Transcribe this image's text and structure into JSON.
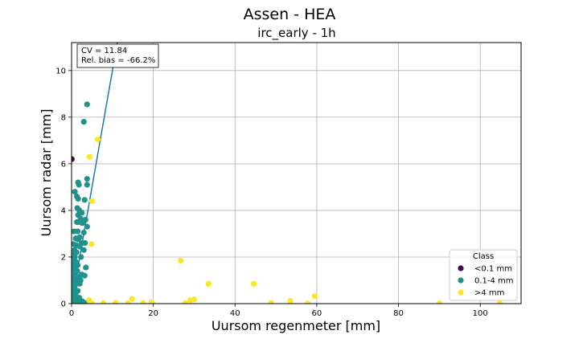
{
  "chart_data": {
    "type": "scatter",
    "suptitle": "Assen - HEA",
    "title": "irc_early - 1h",
    "xlabel": "Uursom regenmeter [mm]",
    "ylabel": "Uursom radar [mm]",
    "xlim": [
      0,
      110
    ],
    "ylim": [
      0,
      11.2
    ],
    "xticks": [
      0,
      20,
      40,
      60,
      80,
      100
    ],
    "yticks": [
      0,
      2,
      4,
      6,
      8,
      10
    ],
    "grid": true,
    "stats": {
      "cv": "CV = 11.84",
      "bias": "Rel. bias = -66.2%"
    },
    "fit_line": {
      "slope": 1.0,
      "intercept": 0.0,
      "color": "#1f77b4"
    },
    "legend": {
      "title": "Class",
      "position": "lower right"
    },
    "series": [
      {
        "name": "<0.1 mm",
        "color": "#440154",
        "points": [
          [
            0.05,
            6.2
          ],
          [
            0.05,
            0.8
          ],
          [
            0.1,
            0.4
          ],
          [
            0.05,
            0.2
          ],
          [
            0.02,
            0.0
          ]
        ]
      },
      {
        "name": "0.1-4 mm",
        "color": "#21918c",
        "points": [
          [
            3.8,
            8.55
          ],
          [
            3.0,
            7.8
          ],
          [
            3.8,
            5.35
          ],
          [
            1.6,
            5.2
          ],
          [
            1.8,
            5.1
          ],
          [
            3.8,
            5.1
          ],
          [
            0.8,
            4.8
          ],
          [
            1.3,
            4.6
          ],
          [
            1.6,
            4.5
          ],
          [
            3.2,
            4.45
          ],
          [
            1.4,
            4.1
          ],
          [
            1.9,
            4.0
          ],
          [
            2.5,
            3.9
          ],
          [
            1.6,
            3.8
          ],
          [
            2.2,
            3.65
          ],
          [
            1.3,
            3.5
          ],
          [
            3.4,
            3.6
          ],
          [
            1.8,
            3.5
          ],
          [
            2.6,
            3.45
          ],
          [
            3.8,
            3.3
          ],
          [
            0.6,
            3.1
          ],
          [
            1.5,
            3.1
          ],
          [
            3.0,
            3.05
          ],
          [
            2.0,
            2.85
          ],
          [
            1.0,
            2.8
          ],
          [
            1.6,
            2.75
          ],
          [
            2.5,
            2.6
          ],
          [
            3.3,
            2.6
          ],
          [
            0.5,
            2.55
          ],
          [
            1.2,
            2.5
          ],
          [
            2.0,
            2.45
          ],
          [
            0.7,
            2.3
          ],
          [
            3.0,
            2.3
          ],
          [
            1.2,
            2.2
          ],
          [
            0.4,
            2.1
          ],
          [
            0.8,
            2.0
          ],
          [
            2.3,
            2.0
          ],
          [
            0.3,
            1.9
          ],
          [
            1.0,
            1.8
          ],
          [
            0.6,
            1.7
          ],
          [
            1.5,
            1.65
          ],
          [
            0.3,
            1.55
          ],
          [
            3.5,
            1.55
          ],
          [
            0.9,
            1.5
          ],
          [
            0.2,
            1.4
          ],
          [
            1.4,
            1.4
          ],
          [
            0.6,
            1.3
          ],
          [
            2.5,
            1.25
          ],
          [
            3.2,
            1.2
          ],
          [
            0.3,
            1.15
          ],
          [
            1.8,
            1.15
          ],
          [
            0.9,
            1.05
          ],
          [
            2.2,
            1.0
          ],
          [
            0.4,
            0.95
          ],
          [
            1.3,
            0.9
          ],
          [
            2.0,
            0.85
          ],
          [
            0.2,
            0.8
          ],
          [
            0.8,
            0.75
          ],
          [
            0.5,
            0.6
          ],
          [
            1.5,
            0.55
          ],
          [
            0.3,
            0.45
          ],
          [
            1.0,
            0.4
          ],
          [
            0.6,
            0.3
          ],
          [
            1.9,
            0.25
          ],
          [
            0.2,
            0.2
          ],
          [
            1.2,
            0.15
          ],
          [
            2.6,
            0.1
          ],
          [
            0.4,
            0.08
          ],
          [
            0.9,
            0.05
          ],
          [
            1.6,
            0.03
          ],
          [
            3.2,
            0.03
          ],
          [
            0.2,
            0.02
          ]
        ]
      },
      {
        "name": ">4 mm",
        "color": "#fde725",
        "points": [
          [
            6.4,
            7.05
          ],
          [
            4.4,
            6.3
          ],
          [
            5.0,
            4.4
          ],
          [
            4.9,
            2.55
          ],
          [
            26.7,
            1.85
          ],
          [
            33.5,
            0.85
          ],
          [
            44.6,
            0.85
          ],
          [
            59.5,
            0.32
          ],
          [
            14.8,
            0.2
          ],
          [
            30.0,
            0.18
          ],
          [
            29.0,
            0.15
          ],
          [
            53.5,
            0.12
          ],
          [
            4.3,
            0.15
          ],
          [
            19.5,
            0.05
          ],
          [
            10.8,
            0.03
          ],
          [
            17.5,
            0.02
          ],
          [
            27.8,
            0.02
          ],
          [
            7.8,
            0.02
          ],
          [
            48.8,
            0.02
          ],
          [
            57.8,
            0.01
          ],
          [
            90.0,
            0.01
          ],
          [
            104.8,
            0.01
          ],
          [
            5.0,
            0.01
          ],
          [
            13.8,
            0.01
          ],
          [
            4.5,
            0.01
          ],
          [
            19.8,
            0.01
          ]
        ]
      }
    ]
  }
}
